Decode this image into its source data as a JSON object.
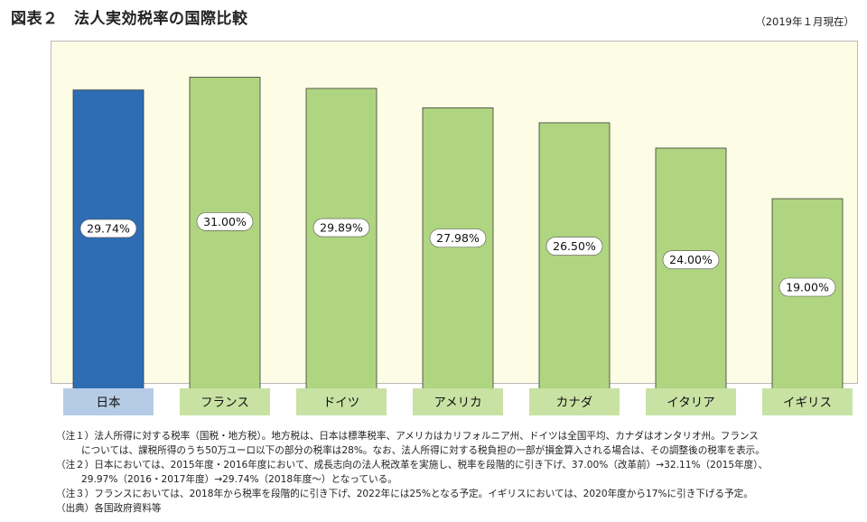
{
  "header": {
    "title": "図表２　法人実効税率の国際比較",
    "date_note": "（2019年１月現在）"
  },
  "chart_data": {
    "type": "bar",
    "categories": [
      "日本",
      "フランス",
      "ドイツ",
      "アメリカ",
      "カナダ",
      "イタリア",
      "イギリス"
    ],
    "values": [
      29.74,
      31.0,
      29.89,
      27.98,
      26.5,
      24.0,
      19.0
    ],
    "value_labels": [
      "29.74%",
      "31.00%",
      "29.89%",
      "27.98%",
      "26.50%",
      "24.00%",
      "19.00%"
    ],
    "highlight_index": 0,
    "ylim": [
      0,
      32.74
    ],
    "grid": false,
    "colors": {
      "highlight_bar": "#2e6db3",
      "bar": "#b0d580",
      "highlight_category": "#b6cce6",
      "category": "#c8e2a4",
      "plot_background": "#fdfde6"
    }
  },
  "notes": [
    {
      "text": "（注１）法人所得に対する税率（国税・地方税）。地方税は、日本は標準税率、アメリカはカリフォルニア州、ドイツは全国平均、カナダはオンタリオ州。フランス",
      "indent": false
    },
    {
      "text": "については、課税所得のうち50万ユーロ以下の部分の税率は28%。なお、法人所得に対する税負担の一部が損金算入される場合は、その調整後の税率を表示。",
      "indent": true
    },
    {
      "text": "（注２）日本においては、2015年度・2016年度において、成長志向の法人税改革を実施し、税率を段階的に引き下げ、37.00%（改革前）→32.11%（2015年度）、",
      "indent": false
    },
    {
      "text": "29.97%（2016・2017年度）→29.74%（2018年度〜）となっている。",
      "indent": true
    },
    {
      "text": "（注３）フランスにおいては、2018年から税率を段階的に引き下げ、2022年には25%となる予定。イギリスにおいては、2020年度から17%に引き下げる予定。",
      "indent": false
    },
    {
      "text": "（出典）各国政府資料等",
      "indent": false
    }
  ]
}
